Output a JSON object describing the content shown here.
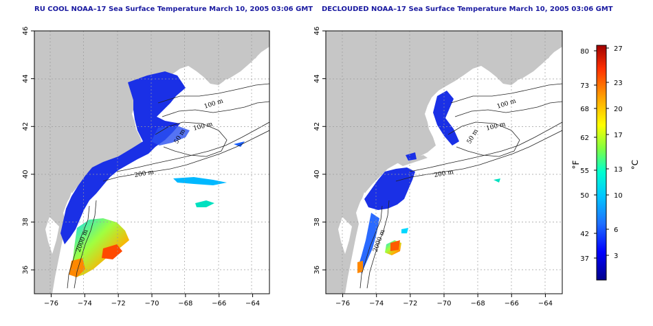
{
  "panels": [
    {
      "title": "RU COOL NOAA–17 Sea Surface Temperature March 10, 2005 03:06 GMT",
      "variant": "raw"
    },
    {
      "title": "DECLOUDED NOAA–17 Sea Surface Temperature March 10, 2005 03:06 GMT",
      "variant": "declouded"
    }
  ],
  "axes": {
    "lon_ticks": [
      "−76",
      "−74",
      "−72",
      "−70",
      "−68",
      "−66",
      "−64"
    ],
    "lat_ticks": [
      "36",
      "38",
      "40",
      "42",
      "44",
      "46"
    ],
    "lon_range": [
      -77,
      -63
    ],
    "lat_range": [
      35,
      46
    ]
  },
  "contours": [
    {
      "label": "100 m",
      "panel": 0
    },
    {
      "label": "100 m",
      "panel": 0
    },
    {
      "label": "50 m",
      "panel": 0
    },
    {
      "label": "200 m",
      "panel": 0
    },
    {
      "label": "2000 m",
      "panel": 0
    },
    {
      "label": "100 m",
      "panel": 1
    },
    {
      "label": "100 m",
      "panel": 1
    },
    {
      "label": "50 m",
      "panel": 1
    },
    {
      "label": "200 m",
      "panel": 1
    },
    {
      "label": "2000 m",
      "panel": 1
    }
  ],
  "colorbar": {
    "f_label": "°F",
    "c_label": "°C",
    "f_ticks": [
      "80",
      "73",
      "68",
      "62",
      "55",
      "50",
      "42",
      "37"
    ],
    "c_ticks": [
      "27",
      "23",
      "20",
      "17",
      "13",
      "10",
      "6",
      "3"
    ],
    "colors": [
      "#00008b",
      "#0000ff",
      "#1e90ff",
      "#00d8ff",
      "#00ffcc",
      "#7fff00",
      "#ffff00",
      "#ffa500",
      "#ff3300",
      "#b00000"
    ]
  },
  "colors": {
    "land": "#c6c6c6",
    "water": "#ffffff",
    "cold": "#1028e0",
    "title": "#1a1aa0"
  }
}
